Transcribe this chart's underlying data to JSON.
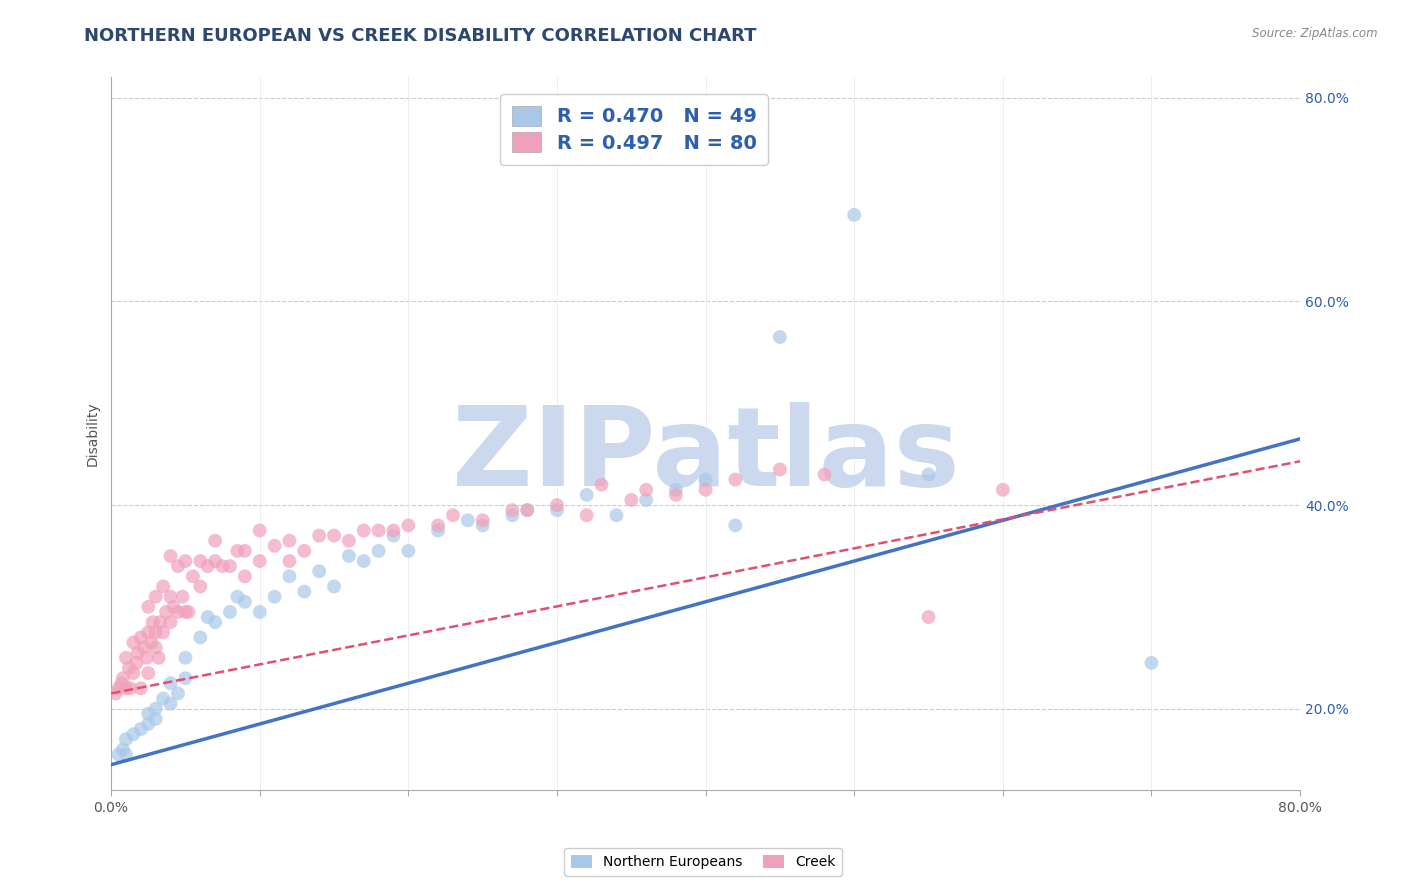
{
  "title": "NORTHERN EUROPEAN VS CREEK DISABILITY CORRELATION CHART",
  "source": "Source: ZipAtlas.com",
  "ylabel": "Disability",
  "watermark": "ZIPatlas",
  "series": [
    {
      "name": "Northern Europeans",
      "color": "#a8c8e8",
      "line_color": "#4472c4",
      "line_style": "-",
      "R": 0.47,
      "N": 49,
      "slope": 0.4,
      "intercept": 0.145,
      "points_x": [
        0.005,
        0.008,
        0.01,
        0.01,
        0.015,
        0.02,
        0.025,
        0.025,
        0.03,
        0.03,
        0.035,
        0.04,
        0.04,
        0.045,
        0.05,
        0.05,
        0.06,
        0.065,
        0.07,
        0.08,
        0.085,
        0.09,
        0.1,
        0.11,
        0.12,
        0.13,
        0.14,
        0.15,
        0.16,
        0.17,
        0.18,
        0.19,
        0.2,
        0.22,
        0.24,
        0.25,
        0.27,
        0.28,
        0.3,
        0.32,
        0.34,
        0.36,
        0.38,
        0.4,
        0.42,
        0.45,
        0.5,
        0.55,
        0.7
      ],
      "points_y": [
        0.155,
        0.16,
        0.155,
        0.17,
        0.175,
        0.18,
        0.185,
        0.195,
        0.19,
        0.2,
        0.21,
        0.205,
        0.225,
        0.215,
        0.23,
        0.25,
        0.27,
        0.29,
        0.285,
        0.295,
        0.31,
        0.305,
        0.295,
        0.31,
        0.33,
        0.315,
        0.335,
        0.32,
        0.35,
        0.345,
        0.355,
        0.37,
        0.355,
        0.375,
        0.385,
        0.38,
        0.39,
        0.395,
        0.395,
        0.41,
        0.39,
        0.405,
        0.415,
        0.425,
        0.38,
        0.565,
        0.685,
        0.43,
        0.245
      ]
    },
    {
      "name": "Creek",
      "color": "#f0a0b8",
      "line_color": "#e05070",
      "line_style": "--",
      "R": 0.497,
      "N": 80,
      "slope": 0.285,
      "intercept": 0.215,
      "points_x": [
        0.003,
        0.005,
        0.007,
        0.008,
        0.01,
        0.01,
        0.012,
        0.013,
        0.015,
        0.015,
        0.017,
        0.018,
        0.02,
        0.02,
        0.022,
        0.024,
        0.025,
        0.025,
        0.025,
        0.027,
        0.028,
        0.03,
        0.03,
        0.03,
        0.032,
        0.033,
        0.035,
        0.035,
        0.037,
        0.04,
        0.04,
        0.04,
        0.042,
        0.045,
        0.045,
        0.048,
        0.05,
        0.05,
        0.052,
        0.055,
        0.06,
        0.06,
        0.065,
        0.07,
        0.07,
        0.075,
        0.08,
        0.085,
        0.09,
        0.09,
        0.1,
        0.1,
        0.11,
        0.12,
        0.12,
        0.13,
        0.14,
        0.15,
        0.16,
        0.17,
        0.18,
        0.19,
        0.2,
        0.22,
        0.23,
        0.25,
        0.27,
        0.28,
        0.3,
        0.32,
        0.33,
        0.35,
        0.36,
        0.38,
        0.4,
        0.42,
        0.45,
        0.48,
        0.55,
        0.6
      ],
      "points_y": [
        0.215,
        0.22,
        0.225,
        0.23,
        0.22,
        0.25,
        0.24,
        0.22,
        0.235,
        0.265,
        0.245,
        0.255,
        0.22,
        0.27,
        0.26,
        0.25,
        0.235,
        0.275,
        0.3,
        0.265,
        0.285,
        0.26,
        0.275,
        0.31,
        0.25,
        0.285,
        0.275,
        0.32,
        0.295,
        0.285,
        0.31,
        0.35,
        0.3,
        0.295,
        0.34,
        0.31,
        0.295,
        0.345,
        0.295,
        0.33,
        0.32,
        0.345,
        0.34,
        0.345,
        0.365,
        0.34,
        0.34,
        0.355,
        0.355,
        0.33,
        0.345,
        0.375,
        0.36,
        0.365,
        0.345,
        0.355,
        0.37,
        0.37,
        0.365,
        0.375,
        0.375,
        0.375,
        0.38,
        0.38,
        0.39,
        0.385,
        0.395,
        0.395,
        0.4,
        0.39,
        0.42,
        0.405,
        0.415,
        0.41,
        0.415,
        0.425,
        0.435,
        0.43,
        0.29,
        0.415
      ]
    }
  ],
  "xlim": [
    0.0,
    0.8
  ],
  "ylim": [
    0.12,
    0.82
  ],
  "yticks": [
    0.2,
    0.4,
    0.6,
    0.8
  ],
  "ytick_labels": [
    "20.0%",
    "40.0%",
    "60.0%",
    "80.0%"
  ],
  "xticks": [
    0.0,
    0.1,
    0.2,
    0.3,
    0.4,
    0.5,
    0.6,
    0.7,
    0.8
  ],
  "grid_color": "#cccccc",
  "bg_color": "#ffffff",
  "title_color": "#2c4770",
  "legend_R_color": "#2c5fad",
  "watermark_color": "#ccd8ee",
  "watermark_fontsize": 80,
  "title_fontsize": 13,
  "axis_label_fontsize": 10,
  "legend_fontsize": 13,
  "scatter_size": 100
}
